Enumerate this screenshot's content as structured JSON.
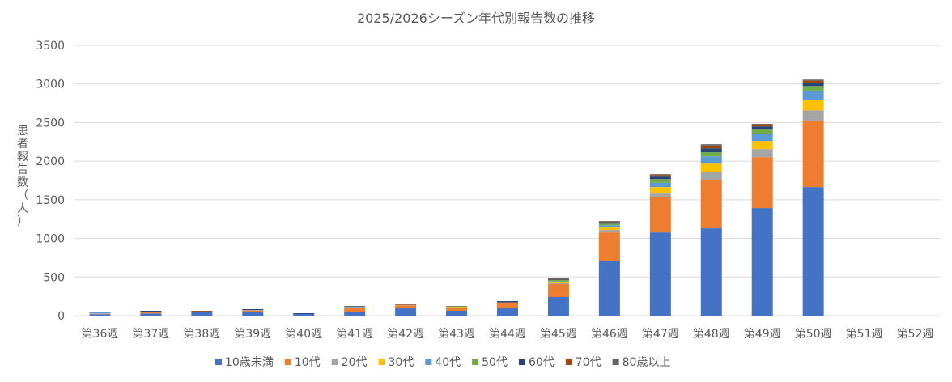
{
  "chart_data": {
    "type": "bar",
    "stacked": true,
    "title": "2025/2026シーズン年代別報告数の推移",
    "xlabel": "",
    "ylabel": "患者報告数（人）",
    "ylim": [
      0,
      3500
    ],
    "yticks": [
      0,
      500,
      1000,
      1500,
      2000,
      2500,
      3000,
      3500
    ],
    "ytick_labels": [
      "0",
      "500",
      "1000",
      "1500",
      "2000",
      "2500",
      "3000",
      "3500"
    ],
    "grid": true,
    "legend_position": "bottom",
    "categories": [
      "第36週",
      "第37週",
      "第38週",
      "第39週",
      "第40週",
      "第41週",
      "第42週",
      "第43週",
      "第44週",
      "第45週",
      "第46週",
      "第47週",
      "第48週",
      "第49週",
      "第50週",
      "第51週",
      "第52週"
    ],
    "series": [
      {
        "name": "10歳未満",
        "color": "#4472C4",
        "values": [
          18,
          28,
          42,
          42,
          21,
          52,
          94,
          63,
          94,
          241,
          712,
          1078,
          1131,
          1393,
          1665,
          0,
          0
        ]
      },
      {
        "name": "10代",
        "color": "#ED7D31",
        "values": [
          6,
          24,
          5,
          24,
          0,
          53,
          39,
          35,
          77,
          167,
          366,
          454,
          628,
          659,
          858,
          0,
          0
        ]
      },
      {
        "name": "20代",
        "color": "#A5A5A5",
        "values": [
          4,
          0,
          0,
          7,
          0,
          6,
          7,
          5,
          0,
          11,
          32,
          49,
          105,
          105,
          136,
          0,
          0
        ]
      },
      {
        "name": "30代",
        "color": "#FFC000",
        "values": [
          0,
          0,
          0,
          0,
          0,
          0,
          0,
          10,
          0,
          17,
          31,
          84,
          104,
          105,
          136,
          0,
          0
        ]
      },
      {
        "name": "40代",
        "color": "#5B9BD5",
        "values": [
          15,
          0,
          6,
          0,
          0,
          5,
          0,
          0,
          0,
          11,
          30,
          56,
          95,
          94,
          119,
          0,
          0
        ]
      },
      {
        "name": "50代",
        "color": "#70AD47",
        "values": [
          0,
          0,
          0,
          0,
          0,
          0,
          0,
          6,
          0,
          14,
          20,
          48,
          52,
          52,
          59,
          0,
          0
        ]
      },
      {
        "name": "60代",
        "color": "#264478",
        "values": [
          0,
          11,
          0,
          11,
          10,
          0,
          0,
          0,
          17,
          7,
          22,
          32,
          52,
          42,
          42,
          0,
          0
        ]
      },
      {
        "name": "70代",
        "color": "#9E480E",
        "values": [
          0,
          0,
          10,
          0,
          0,
          0,
          7,
          0,
          0,
          4,
          7,
          21,
          35,
          28,
          28,
          0,
          0
        ]
      },
      {
        "name": "80歳以上",
        "color": "#636363",
        "values": [
          0,
          0,
          0,
          0,
          0,
          10,
          0,
          7,
          0,
          10,
          5,
          10,
          18,
          5,
          14,
          0,
          0
        ]
      }
    ]
  }
}
